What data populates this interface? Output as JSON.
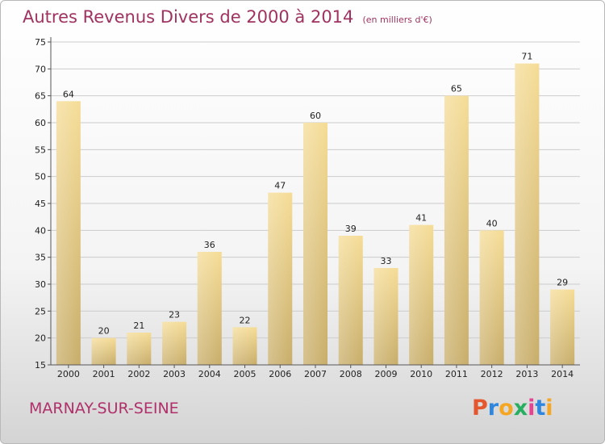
{
  "header": {
    "title": "Autres Revenus Divers de 2000 à 2014",
    "subtitle": "(en milliers d'€)"
  },
  "footer": {
    "city": "MARNAY-SUR-SEINE",
    "logo": [
      "P",
      "r",
      "o",
      "x",
      "i",
      "t",
      "i"
    ]
  },
  "colors": {
    "title": "#a0325f",
    "bar_light": "#f5dc96",
    "bar_dark": "#c8ad69",
    "grid": "#cccccc",
    "logo": [
      "#e4572e",
      "#2e86de",
      "#f5a623",
      "#27ae60",
      "#e84393",
      "#2e86de",
      "#f5a623"
    ]
  },
  "chart_data": {
    "type": "bar",
    "title": "Autres Revenus Divers de 2000 à 2014",
    "subtitle": "(en milliers d'€)",
    "categories": [
      "2000",
      "2001",
      "2002",
      "2003",
      "2004",
      "2005",
      "2006",
      "2007",
      "2008",
      "2009",
      "2010",
      "2011",
      "2012",
      "2013",
      "2014"
    ],
    "values": [
      64,
      20,
      21,
      23,
      36,
      22,
      47,
      60,
      39,
      33,
      41,
      65,
      40,
      71,
      29
    ],
    "ylim": [
      15,
      75
    ],
    "yticks": [
      15,
      20,
      25,
      30,
      35,
      40,
      45,
      50,
      55,
      60,
      65,
      70,
      75
    ],
    "grid": true,
    "legend": "none"
  }
}
